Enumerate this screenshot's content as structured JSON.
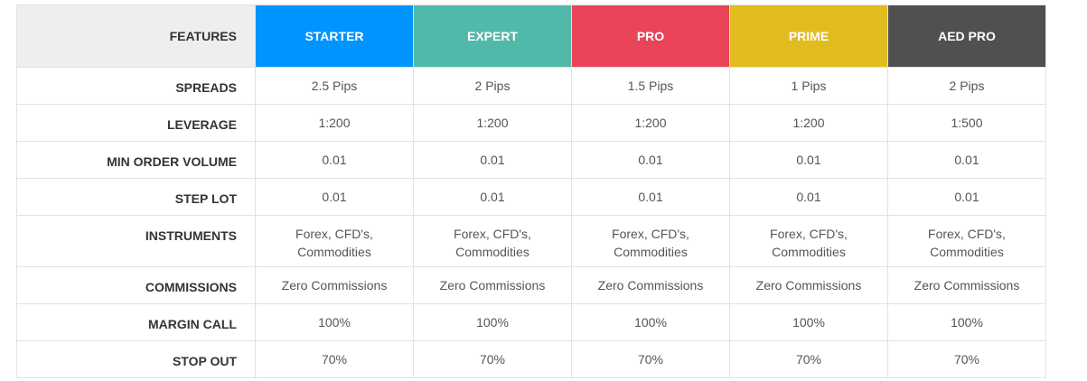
{
  "header": {
    "features_label": "FEATURES",
    "plans": [
      {
        "name": "STARTER",
        "color": "#0094ff"
      },
      {
        "name": "EXPERT",
        "color": "#51b9a9"
      },
      {
        "name": "PRO",
        "color": "#e94457"
      },
      {
        "name": "PRIME",
        "color": "#e1bc1f"
      },
      {
        "name": "AED PRO",
        "color": "#505050"
      }
    ]
  },
  "rows": [
    {
      "label": "SPREADS",
      "values": [
        "2.5 Pips",
        "2 Pips",
        "1.5 Pips",
        "1 Pips",
        "2 Pips"
      ]
    },
    {
      "label": "LEVERAGE",
      "values": [
        "1:200",
        "1:200",
        "1:200",
        "1:200",
        "1:500"
      ]
    },
    {
      "label": "MIN ORDER VOLUME",
      "values": [
        "0.01",
        "0.01",
        "0.01",
        "0.01",
        "0.01"
      ]
    },
    {
      "label": "STEP LOT",
      "values": [
        "0.01",
        "0.01",
        "0.01",
        "0.01",
        "0.01"
      ]
    },
    {
      "label": "INSTRUMENTS",
      "values": [
        "Forex, CFD's,\nCommodities",
        "Forex, CFD's,\nCommodities",
        "Forex, CFD's,\nCommodities",
        "Forex, CFD's,\nCommodities",
        "Forex, CFD's,\nCommodities"
      ]
    },
    {
      "label": "COMMISSIONS",
      "values": [
        "Zero Commissions",
        "Zero Commissions",
        "Zero Commissions",
        "Zero Commissions",
        "Zero Commissions"
      ]
    },
    {
      "label": "MARGIN CALL",
      "values": [
        "100%",
        "100%",
        "100%",
        "100%",
        "100%"
      ]
    },
    {
      "label": "STOP OUT",
      "values": [
        "70%",
        "70%",
        "70%",
        "70%",
        "70%"
      ]
    }
  ]
}
